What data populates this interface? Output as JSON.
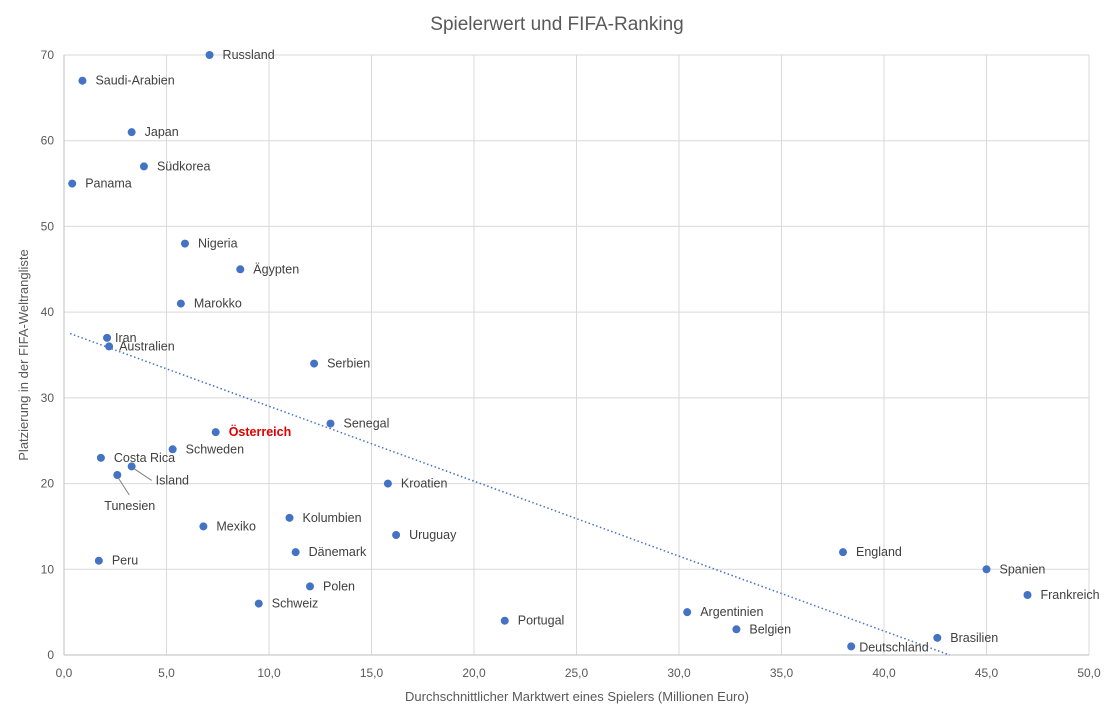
{
  "chart_data": {
    "type": "scatter",
    "title": "Spielerwert und FIFA-Ranking",
    "xlabel": "Durchschnittlicher Marktwert eines Spielers (Millionen Euro)",
    "ylabel": "Platzierung in der FIFA-Weltrangliste",
    "xlim": [
      0,
      50
    ],
    "ylim": [
      0,
      70
    ],
    "x_ticks": [
      "0,0",
      "5,0",
      "10,0",
      "15,0",
      "20,0",
      "25,0",
      "30,0",
      "35,0",
      "40,0",
      "45,0",
      "50,0"
    ],
    "y_ticks": [
      "0",
      "10",
      "20",
      "30",
      "40",
      "50",
      "60",
      "70"
    ],
    "grid": true,
    "marker_color": "#4472C4",
    "highlight_color": "#E00000",
    "trendline": {
      "type": "linear",
      "style": "dotted",
      "color": "#4472C4",
      "x0": 0.3,
      "y0": 37.5,
      "x1": 43.2,
      "y1": 0
    },
    "points": [
      {
        "label": "Russland",
        "x": 7.1,
        "y": 70
      },
      {
        "label": "Saudi-Arabien",
        "x": 0.9,
        "y": 67
      },
      {
        "label": "Japan",
        "x": 3.3,
        "y": 61
      },
      {
        "label": "Südkorea",
        "x": 3.9,
        "y": 57
      },
      {
        "label": "Panama",
        "x": 0.4,
        "y": 55
      },
      {
        "label": "Nigeria",
        "x": 5.9,
        "y": 48
      },
      {
        "label": "Ägypten",
        "x": 8.6,
        "y": 45
      },
      {
        "label": "Marokko",
        "x": 5.7,
        "y": 41
      },
      {
        "label": "Iran",
        "x": 2.1,
        "y": 37
      },
      {
        "label": "Australien",
        "x": 2.2,
        "y": 36
      },
      {
        "label": "Serbien",
        "x": 12.2,
        "y": 34
      },
      {
        "label": "Senegal",
        "x": 13.0,
        "y": 27
      },
      {
        "label": "Österreich",
        "x": 7.4,
        "y": 26,
        "highlight": true
      },
      {
        "label": "Schweden",
        "x": 5.3,
        "y": 24
      },
      {
        "label": "Costa Rica",
        "x": 1.8,
        "y": 23
      },
      {
        "label": "Island",
        "x": 3.3,
        "y": 22
      },
      {
        "label": "Tunesien",
        "x": 2.6,
        "y": 21
      },
      {
        "label": "Kroatien",
        "x": 15.8,
        "y": 20
      },
      {
        "label": "Kolumbien",
        "x": 11.0,
        "y": 16
      },
      {
        "label": "Mexiko",
        "x": 6.8,
        "y": 15
      },
      {
        "label": "Uruguay",
        "x": 16.2,
        "y": 14
      },
      {
        "label": "Dänemark",
        "x": 11.3,
        "y": 12
      },
      {
        "label": "England",
        "x": 38.0,
        "y": 12
      },
      {
        "label": "Peru",
        "x": 1.7,
        "y": 11
      },
      {
        "label": "Spanien",
        "x": 45.0,
        "y": 10
      },
      {
        "label": "Polen",
        "x": 12.0,
        "y": 8
      },
      {
        "label": "Frankreich",
        "x": 47.0,
        "y": 7
      },
      {
        "label": "Schweiz",
        "x": 9.5,
        "y": 6
      },
      {
        "label": "Argentinien",
        "x": 30.4,
        "y": 5
      },
      {
        "label": "Portugal",
        "x": 21.5,
        "y": 4
      },
      {
        "label": "Belgien",
        "x": 32.8,
        "y": 3
      },
      {
        "label": "Brasilien",
        "x": 42.6,
        "y": 2
      },
      {
        "label": "Deutschland",
        "x": 38.4,
        "y": 1
      }
    ]
  }
}
